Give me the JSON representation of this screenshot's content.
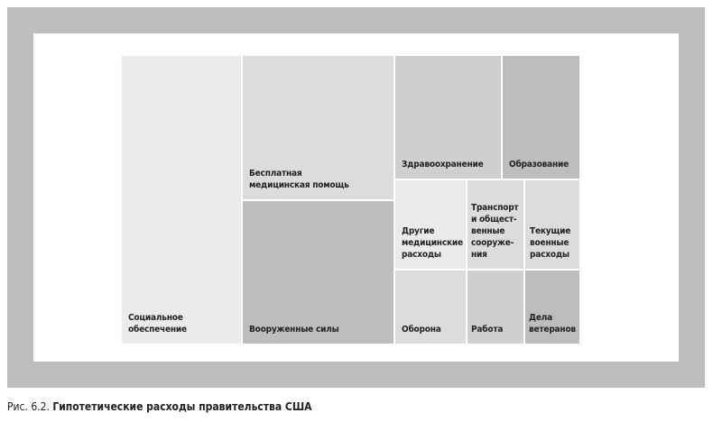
{
  "nodes": [
    {
      "lines": [
        "Социальное",
        "обеспечение"
      ]
    },
    {
      "lines": [
        "Бесплатная",
        "медицинская помощь"
      ]
    },
    {
      "lines": [
        "Вооруженные силы"
      ]
    },
    {
      "lines": [
        "Здравоохранение"
      ]
    },
    {
      "lines": [
        "Образование"
      ]
    },
    {
      "lines": [
        "Другие",
        "медицинские",
        "расходы"
      ]
    },
    {
      "lines": [
        "Транспорт",
        "и общест-",
        "венные",
        "сооруже-",
        "ния"
      ]
    },
    {
      "lines": [
        "Текущие",
        "военные",
        "расходы"
      ]
    },
    {
      "lines": [
        "Оборона"
      ]
    },
    {
      "lines": [
        "Работа"
      ]
    },
    {
      "lines": [
        "Дела",
        "ветеранов"
      ]
    }
  ],
  "caption": {
    "prefix": "Рис. 6.2.",
    "title": "Гипотетические расходы правительства США"
  }
}
